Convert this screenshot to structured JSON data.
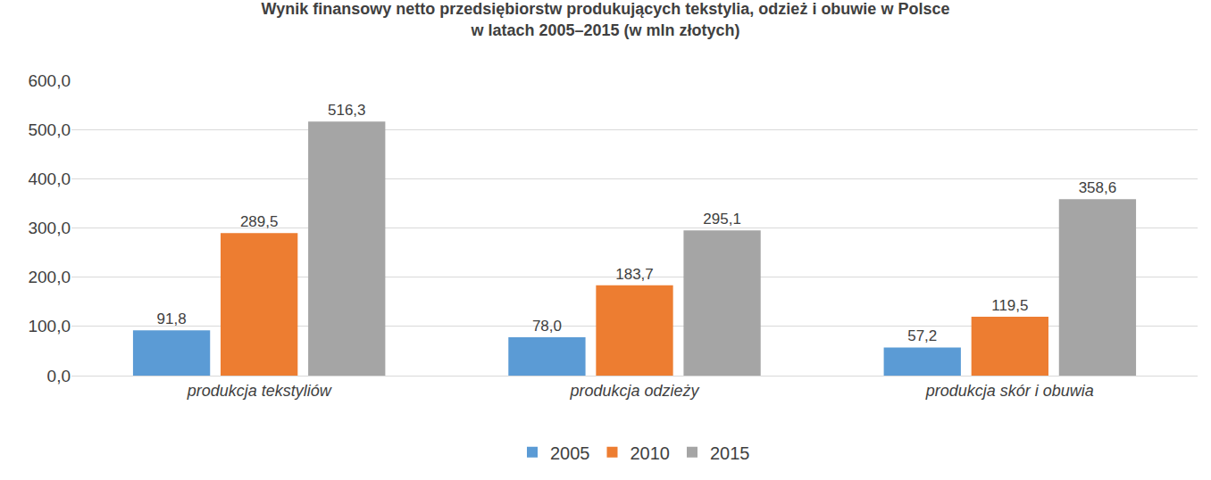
{
  "chart_data": {
    "type": "bar",
    "title": "Wynik finansowy netto przedsiębiorstw produkujących tekstylia, odzież i obuwie w Polsce\nw latach 2005–2015 (w mln złotych)",
    "categories": [
      "produkcja tekstyliów",
      "produkcja odzieży",
      "produkcja skór i obuwia"
    ],
    "series": [
      {
        "name": "2005",
        "color": "#5B9BD5",
        "values": [
          91.8,
          78.0,
          57.2
        ],
        "value_labels": [
          "91,8",
          "78,0",
          "57,2"
        ]
      },
      {
        "name": "2010",
        "color": "#ED7D31",
        "values": [
          289.5,
          183.7,
          119.5
        ],
        "value_labels": [
          "289,5",
          "183,7",
          "119,5"
        ]
      },
      {
        "name": "2015",
        "color": "#A5A5A5",
        "values": [
          516.3,
          295.1,
          358.6
        ],
        "value_labels": [
          "516,3",
          "295,1",
          "358,6"
        ]
      }
    ],
    "ylim": [
      0,
      600
    ],
    "yticks": [
      {
        "value": 0,
        "label": "0,0"
      },
      {
        "value": 100,
        "label": "100,0"
      },
      {
        "value": 200,
        "label": "200,0"
      },
      {
        "value": 300,
        "label": "300,0"
      },
      {
        "value": 400,
        "label": "400,0"
      },
      {
        "value": 500,
        "label": "500,0"
      },
      {
        "value": 600,
        "label": "600,0"
      }
    ],
    "grid": true,
    "legend": "bottom",
    "data_labels": true
  }
}
